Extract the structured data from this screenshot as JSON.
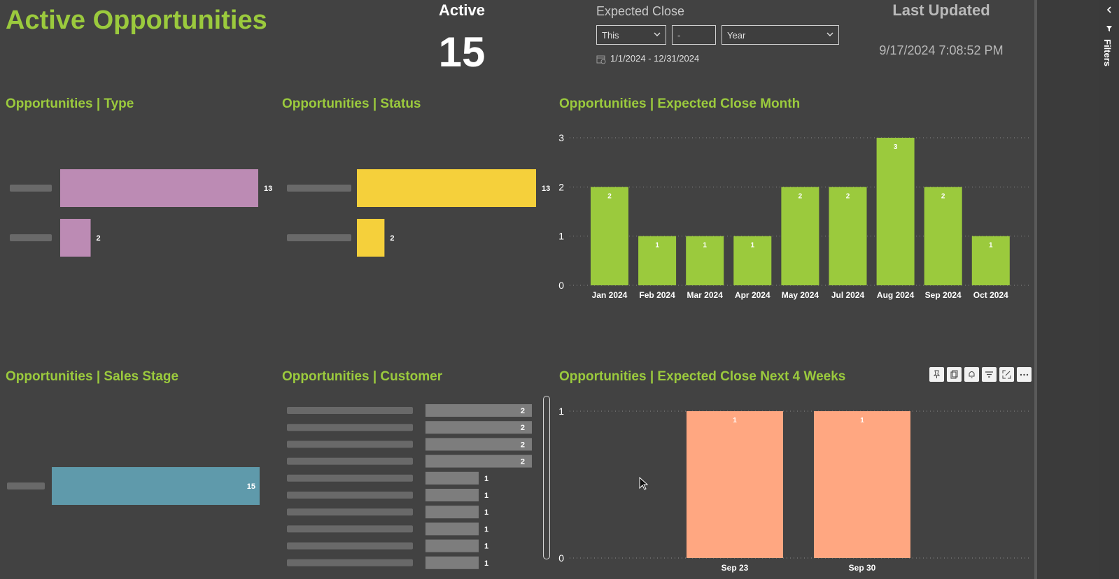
{
  "header": {
    "title": "Active Opportunities",
    "kpi_label": "Active",
    "kpi_value": "15",
    "expected_close_label": "Expected Close",
    "filter_relative": "This",
    "filter_number": "-",
    "filter_period": "Year",
    "date_range": "1/1/2024 - 12/31/2024",
    "last_updated_label": "Last Updated",
    "last_updated_value": "9/17/2024 7:08:52 PM"
  },
  "sections": {
    "type": "Opportunities | Type",
    "status": "Opportunities | Status",
    "close_month": "Opportunities | Expected Close Month",
    "sales_stage": "Opportunities | Sales Stage",
    "customer": "Opportunities | Customer",
    "next4": "Opportunities | Expected Close Next 4 Weeks"
  },
  "filter_pane": {
    "label": "Filters"
  },
  "icons": [
    "chevron-left-icon",
    "filter-icon",
    "pin-icon",
    "copy-icon",
    "bell-icon",
    "filter-icon",
    "focus-mode-icon",
    "more-options-icon",
    "calendar-icon",
    "chevron-down-icon"
  ],
  "colors": {
    "accent": "#9bca3d",
    "type": "#bc8bb4",
    "status": "#f5d03b",
    "stage": "#5f9aab",
    "customer": "#7d7d7d",
    "next4": "#ffa781"
  },
  "chart_data": [
    {
      "type": "bar",
      "orientation": "horizontal",
      "title": "Opportunities | Type",
      "categories": [
        "",
        ""
      ],
      "values": [
        13,
        2
      ],
      "note_labels_blurred": true
    },
    {
      "type": "bar",
      "orientation": "horizontal",
      "title": "Opportunities | Status",
      "categories": [
        "",
        ""
      ],
      "values": [
        13,
        2
      ]
    },
    {
      "type": "bar",
      "title": "Opportunities | Expected Close Month",
      "categories": [
        "Jan 2024",
        "Feb 2024",
        "Mar 2024",
        "Apr 2024",
        "May 2024",
        "Jul 2024",
        "Aug 2024",
        "Sep 2024",
        "Oct 2024"
      ],
      "values": [
        2,
        1,
        1,
        1,
        2,
        2,
        3,
        2,
        1
      ],
      "ylim": [
        0,
        3
      ],
      "yticks": [
        "0",
        "1",
        "2",
        "3"
      ],
      "grid": true
    },
    {
      "type": "bar",
      "orientation": "horizontal",
      "title": "Opportunities | Sales Stage",
      "categories": [
        ""
      ],
      "values": [
        15
      ]
    },
    {
      "type": "bar",
      "orientation": "horizontal",
      "title": "Opportunities | Customer",
      "categories": [
        "",
        "",
        "",
        "",
        "",
        "",
        "",
        "",
        "",
        ""
      ],
      "values": [
        2,
        2,
        2,
        2,
        1,
        1,
        1,
        1,
        1,
        1
      ]
    },
    {
      "type": "bar",
      "title": "Opportunities | Expected Close Next 4 Weeks",
      "categories": [
        "Sep 23",
        "Sep 30"
      ],
      "values": [
        1,
        1
      ],
      "ylim": [
        0,
        1
      ],
      "yticks": [
        "0",
        "1"
      ],
      "grid": true
    }
  ]
}
